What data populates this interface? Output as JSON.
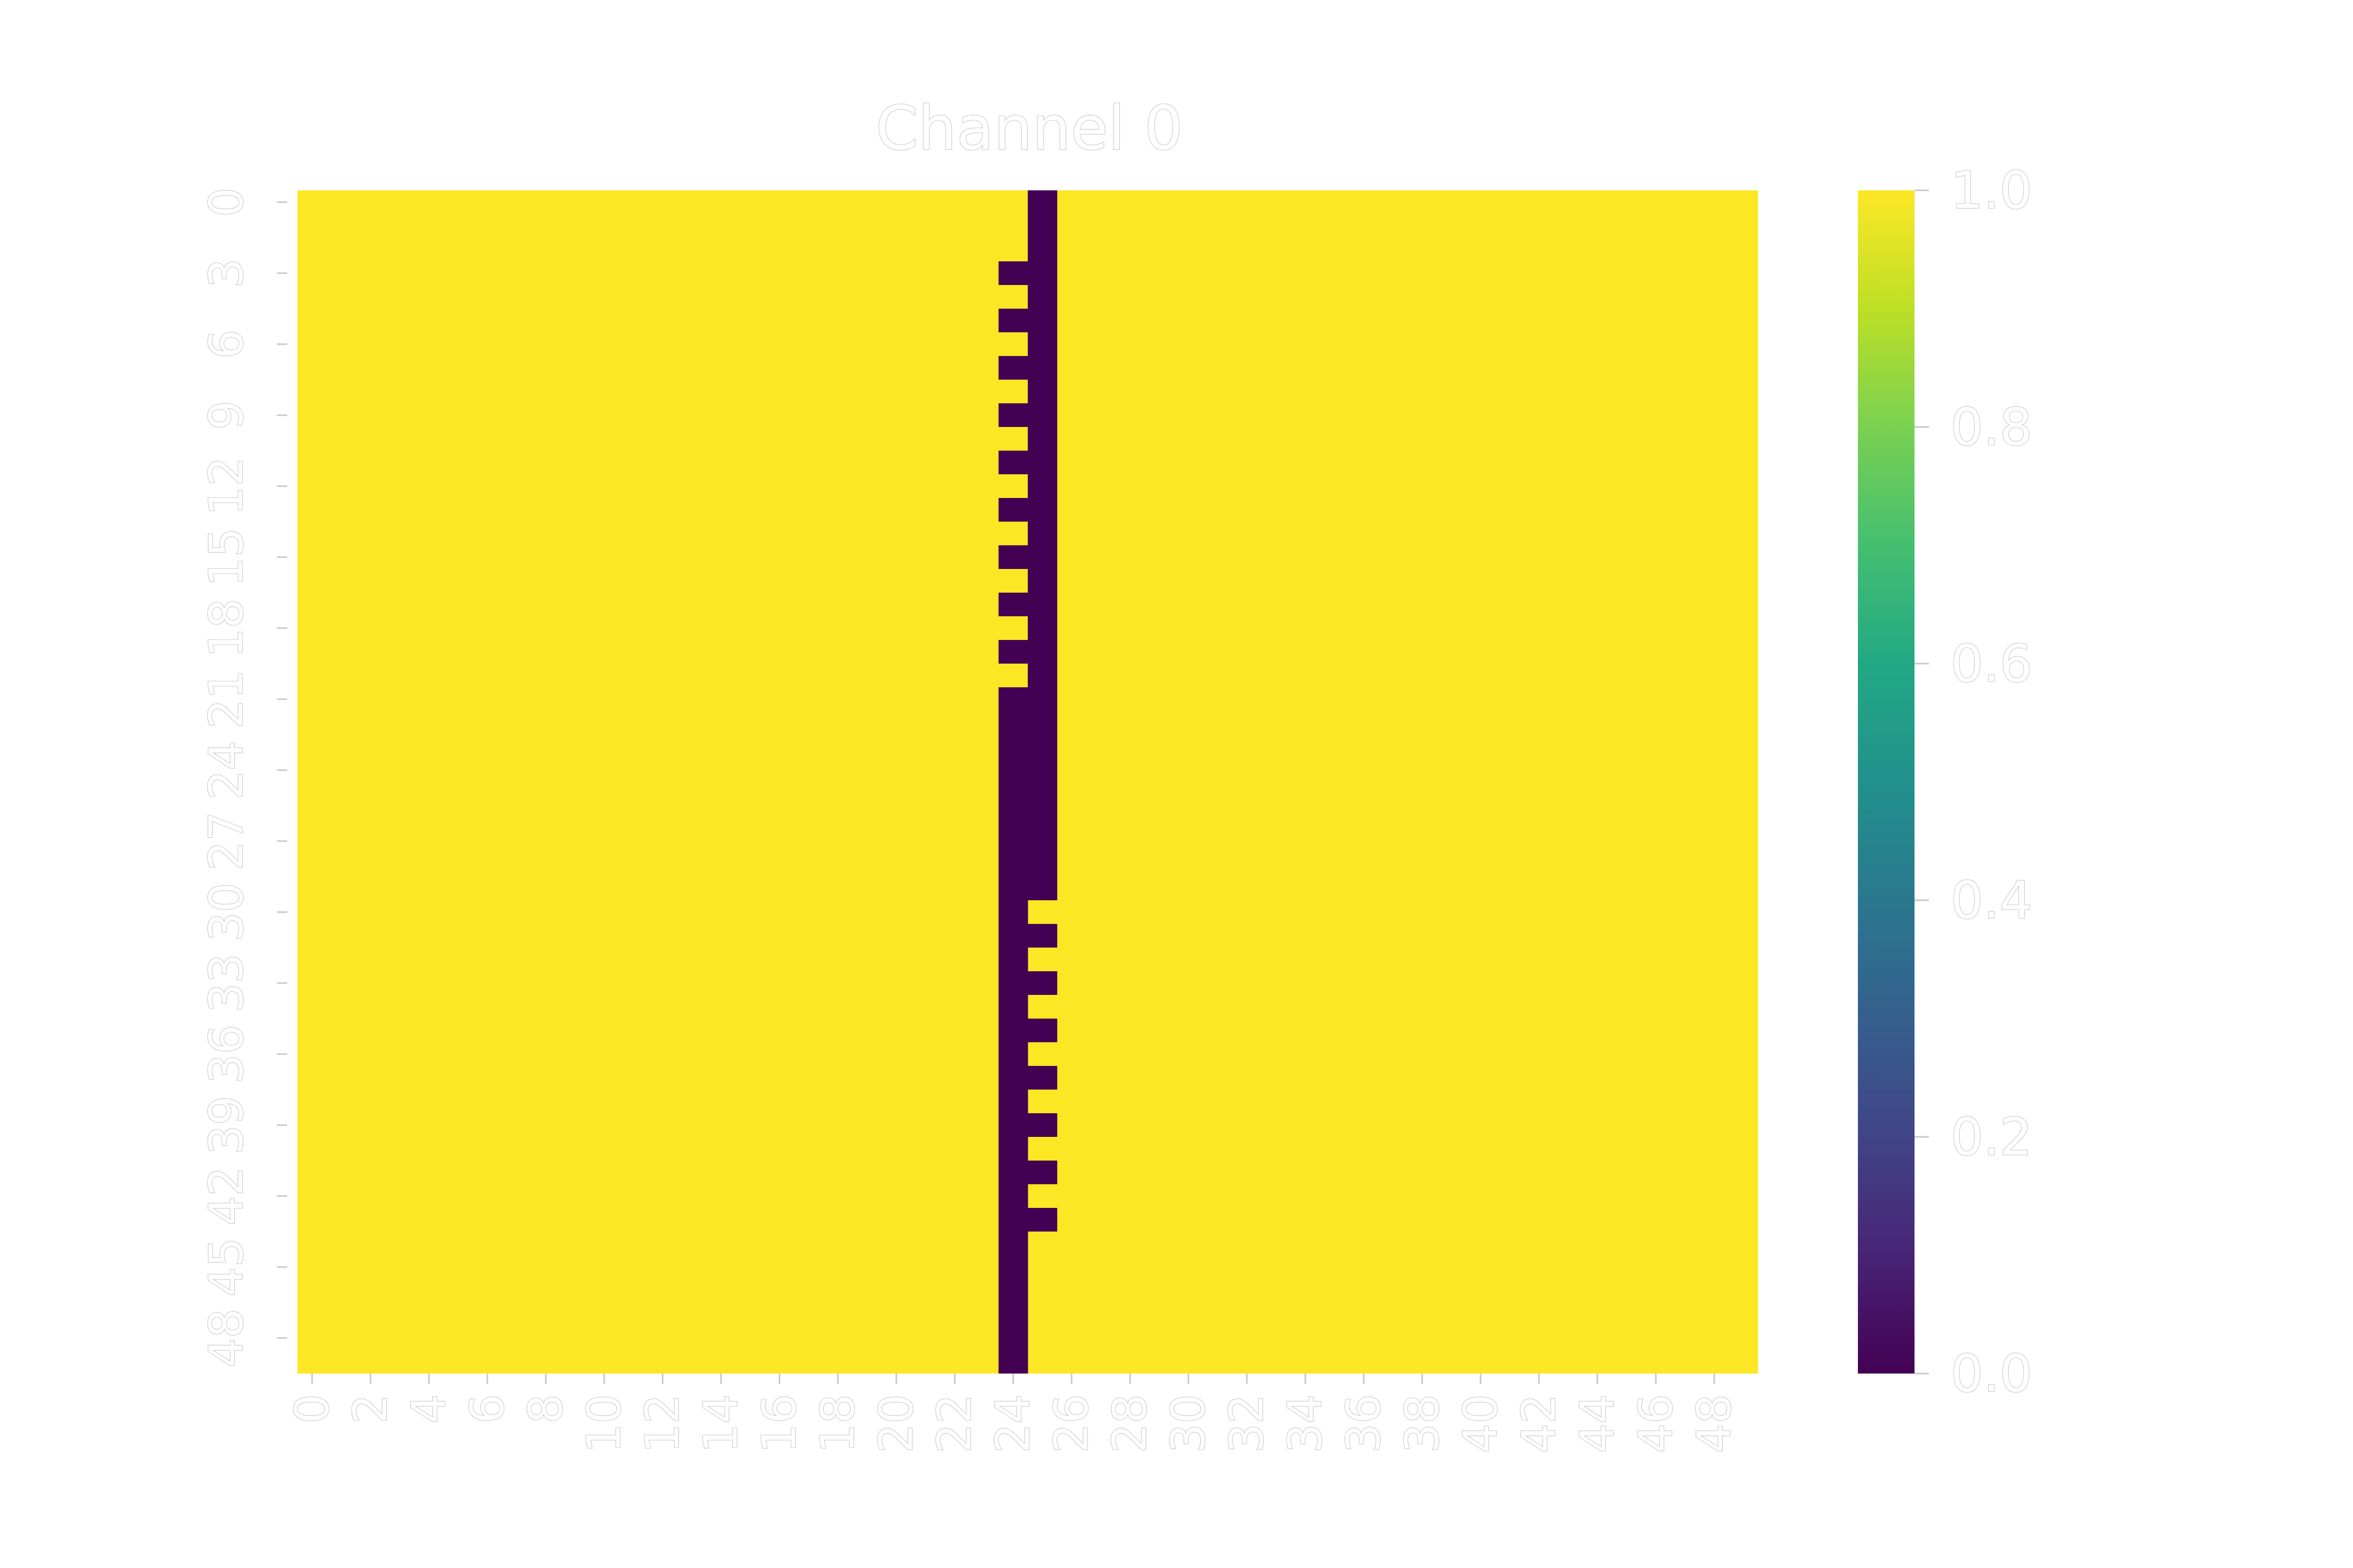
{
  "chart_data": {
    "type": "heatmap",
    "title": "Channel 0",
    "colormap": "viridis",
    "rows": 50,
    "cols": 50,
    "background_value": 1.0,
    "x_tick_labels": [
      "0",
      "2",
      "4",
      "6",
      "8",
      "10",
      "12",
      "14",
      "16",
      "18",
      "20",
      "22",
      "24",
      "26",
      "28",
      "30",
      "32",
      "34",
      "36",
      "38",
      "40",
      "42",
      "44",
      "46",
      "48"
    ],
    "y_tick_labels": [
      "0",
      "3",
      "6",
      "9",
      "12",
      "15",
      "18",
      "21",
      "24",
      "27",
      "30",
      "33",
      "36",
      "39",
      "42",
      "45",
      "48"
    ],
    "colorbar": {
      "min": 0.0,
      "max": 1.0,
      "ticks": [
        "0.0",
        "0.2",
        "0.4",
        "0.6",
        "0.8",
        "1.0"
      ]
    },
    "zero_runs": [
      {
        "col": 25,
        "rows": [
          0,
          29
        ]
      },
      {
        "col": 24,
        "rows": [
          3,
          3
        ]
      },
      {
        "col": 24,
        "rows": [
          5,
          5
        ]
      },
      {
        "col": 24,
        "rows": [
          7,
          7
        ]
      },
      {
        "col": 24,
        "rows": [
          9,
          9
        ]
      },
      {
        "col": 24,
        "rows": [
          11,
          11
        ]
      },
      {
        "col": 24,
        "rows": [
          13,
          13
        ]
      },
      {
        "col": 24,
        "rows": [
          15,
          15
        ]
      },
      {
        "col": 24,
        "rows": [
          17,
          17
        ]
      },
      {
        "col": 24,
        "rows": [
          19,
          19
        ]
      },
      {
        "col": 24,
        "rows": [
          21,
          49
        ]
      },
      {
        "col": 25,
        "rows": [
          31,
          31
        ]
      },
      {
        "col": 25,
        "rows": [
          33,
          33
        ]
      },
      {
        "col": 25,
        "rows": [
          35,
          35
        ]
      },
      {
        "col": 25,
        "rows": [
          37,
          37
        ]
      },
      {
        "col": 25,
        "rows": [
          39,
          39
        ]
      },
      {
        "col": 25,
        "rows": [
          41,
          41
        ]
      },
      {
        "col": 25,
        "rows": [
          43,
          43
        ]
      }
    ],
    "colors": {
      "high": "#fde725",
      "low": "#440154",
      "text_outline": "#c8c8c8"
    }
  }
}
